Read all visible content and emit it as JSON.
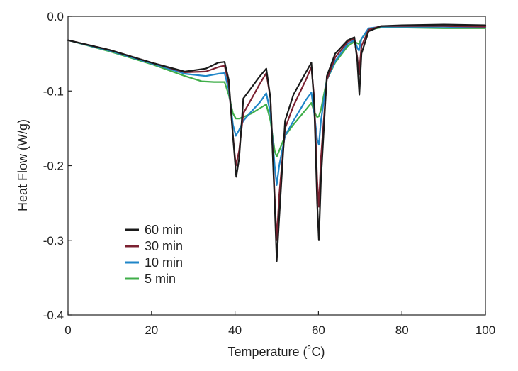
{
  "chart_data": {
    "type": "line",
    "title": "",
    "xlabel": "Temperature (˚C)",
    "ylabel": "Heat Flow (W/g)",
    "xlim": [
      0,
      100
    ],
    "ylim": [
      -0.4,
      0.0
    ],
    "xticks": [
      0,
      20,
      40,
      60,
      80,
      100
    ],
    "yticks": [
      0.0,
      -0.1,
      -0.2,
      -0.3,
      -0.4
    ],
    "xtick_labels": [
      "0",
      "20",
      "40",
      "60",
      "80",
      "100"
    ],
    "ytick_labels": [
      "0.0",
      "-0.1",
      "-0.2",
      "-0.3",
      "-0.4"
    ],
    "grid": false,
    "legend_position": "lower-left",
    "series": [
      {
        "name": "60 min",
        "color": "#1a1a1a",
        "points": [
          [
            0,
            -0.032
          ],
          [
            10,
            -0.045
          ],
          [
            20,
            -0.062
          ],
          [
            28,
            -0.074
          ],
          [
            33,
            -0.07
          ],
          [
            36,
            -0.062
          ],
          [
            37.5,
            -0.061
          ],
          [
            38.5,
            -0.085
          ],
          [
            39.5,
            -0.16
          ],
          [
            40.3,
            -0.215
          ],
          [
            41,
            -0.19
          ],
          [
            42,
            -0.11
          ],
          [
            44,
            -0.095
          ],
          [
            46,
            -0.08
          ],
          [
            47.5,
            -0.07
          ],
          [
            48.5,
            -0.11
          ],
          [
            49.5,
            -0.25
          ],
          [
            50,
            -0.328
          ],
          [
            50.6,
            -0.27
          ],
          [
            52,
            -0.14
          ],
          [
            54,
            -0.105
          ],
          [
            57,
            -0.075
          ],
          [
            58.3,
            -0.062
          ],
          [
            59,
            -0.12
          ],
          [
            59.7,
            -0.25
          ],
          [
            60.1,
            -0.3
          ],
          [
            60.6,
            -0.22
          ],
          [
            62,
            -0.08
          ],
          [
            64,
            -0.05
          ],
          [
            67,
            -0.032
          ],
          [
            68.6,
            -0.028
          ],
          [
            69.3,
            -0.06
          ],
          [
            69.8,
            -0.105
          ],
          [
            70.3,
            -0.05
          ],
          [
            72,
            -0.02
          ],
          [
            75,
            -0.013
          ],
          [
            80,
            -0.012
          ],
          [
            90,
            -0.011
          ],
          [
            100,
            -0.012
          ]
        ]
      },
      {
        "name": "30 min",
        "color": "#7b2131",
        "points": [
          [
            0,
            -0.032
          ],
          [
            10,
            -0.045
          ],
          [
            20,
            -0.062
          ],
          [
            28,
            -0.075
          ],
          [
            33,
            -0.074
          ],
          [
            36,
            -0.068
          ],
          [
            37.5,
            -0.066
          ],
          [
            38.5,
            -0.09
          ],
          [
            39.5,
            -0.16
          ],
          [
            40.2,
            -0.2
          ],
          [
            41,
            -0.18
          ],
          [
            42,
            -0.13
          ],
          [
            44,
            -0.11
          ],
          [
            46,
            -0.09
          ],
          [
            47.5,
            -0.076
          ],
          [
            48.5,
            -0.11
          ],
          [
            49.5,
            -0.24
          ],
          [
            50,
            -0.3
          ],
          [
            50.6,
            -0.24
          ],
          [
            52,
            -0.15
          ],
          [
            54,
            -0.12
          ],
          [
            57,
            -0.085
          ],
          [
            58.3,
            -0.068
          ],
          [
            59,
            -0.11
          ],
          [
            59.7,
            -0.22
          ],
          [
            60.1,
            -0.255
          ],
          [
            60.6,
            -0.19
          ],
          [
            62,
            -0.085
          ],
          [
            64,
            -0.055
          ],
          [
            67,
            -0.034
          ],
          [
            68.6,
            -0.03
          ],
          [
            69.3,
            -0.055
          ],
          [
            69.7,
            -0.078
          ],
          [
            70.3,
            -0.04
          ],
          [
            72,
            -0.018
          ],
          [
            75,
            -0.013
          ],
          [
            80,
            -0.013
          ],
          [
            90,
            -0.013
          ],
          [
            100,
            -0.014
          ]
        ]
      },
      {
        "name": "10 min",
        "color": "#1f86c8",
        "points": [
          [
            0,
            -0.032
          ],
          [
            10,
            -0.046
          ],
          [
            20,
            -0.063
          ],
          [
            28,
            -0.077
          ],
          [
            33,
            -0.08
          ],
          [
            36,
            -0.077
          ],
          [
            37.5,
            -0.076
          ],
          [
            38.5,
            -0.098
          ],
          [
            39.5,
            -0.145
          ],
          [
            40.2,
            -0.16
          ],
          [
            41,
            -0.152
          ],
          [
            42,
            -0.14
          ],
          [
            44,
            -0.127
          ],
          [
            46,
            -0.115
          ],
          [
            47.5,
            -0.103
          ],
          [
            48.5,
            -0.13
          ],
          [
            49.5,
            -0.2
          ],
          [
            50,
            -0.226
          ],
          [
            50.6,
            -0.2
          ],
          [
            52,
            -0.16
          ],
          [
            54,
            -0.14
          ],
          [
            57,
            -0.112
          ],
          [
            58.3,
            -0.102
          ],
          [
            59,
            -0.13
          ],
          [
            59.7,
            -0.165
          ],
          [
            60.1,
            -0.172
          ],
          [
            60.6,
            -0.14
          ],
          [
            62,
            -0.085
          ],
          [
            64,
            -0.06
          ],
          [
            67,
            -0.037
          ],
          [
            68.6,
            -0.032
          ],
          [
            69.3,
            -0.042
          ],
          [
            69.7,
            -0.046
          ],
          [
            70.3,
            -0.03
          ],
          [
            72,
            -0.016
          ],
          [
            75,
            -0.014
          ],
          [
            80,
            -0.014
          ],
          [
            90,
            -0.014
          ],
          [
            100,
            -0.015
          ]
        ]
      },
      {
        "name": "5 min",
        "color": "#3fae49",
        "points": [
          [
            0,
            -0.032
          ],
          [
            10,
            -0.047
          ],
          [
            20,
            -0.064
          ],
          [
            28,
            -0.08
          ],
          [
            32,
            -0.087
          ],
          [
            35,
            -0.088
          ],
          [
            37.5,
            -0.088
          ],
          [
            38.5,
            -0.105
          ],
          [
            39.5,
            -0.13
          ],
          [
            40.2,
            -0.137
          ],
          [
            41,
            -0.137
          ],
          [
            42,
            -0.135
          ],
          [
            44,
            -0.13
          ],
          [
            46,
            -0.123
          ],
          [
            47.5,
            -0.118
          ],
          [
            48.5,
            -0.14
          ],
          [
            49.5,
            -0.18
          ],
          [
            50,
            -0.188
          ],
          [
            50.6,
            -0.18
          ],
          [
            52,
            -0.16
          ],
          [
            54,
            -0.145
          ],
          [
            57,
            -0.125
          ],
          [
            58.3,
            -0.116
          ],
          [
            59,
            -0.128
          ],
          [
            59.7,
            -0.135
          ],
          [
            60.1,
            -0.134
          ],
          [
            60.6,
            -0.125
          ],
          [
            62,
            -0.085
          ],
          [
            64,
            -0.062
          ],
          [
            67,
            -0.04
          ],
          [
            68.6,
            -0.034
          ],
          [
            69.3,
            -0.036
          ],
          [
            69.7,
            -0.037
          ],
          [
            70.3,
            -0.03
          ],
          [
            72,
            -0.018
          ],
          [
            75,
            -0.015
          ],
          [
            80,
            -0.015
          ],
          [
            90,
            -0.016
          ],
          [
            100,
            -0.016
          ]
        ]
      }
    ]
  }
}
